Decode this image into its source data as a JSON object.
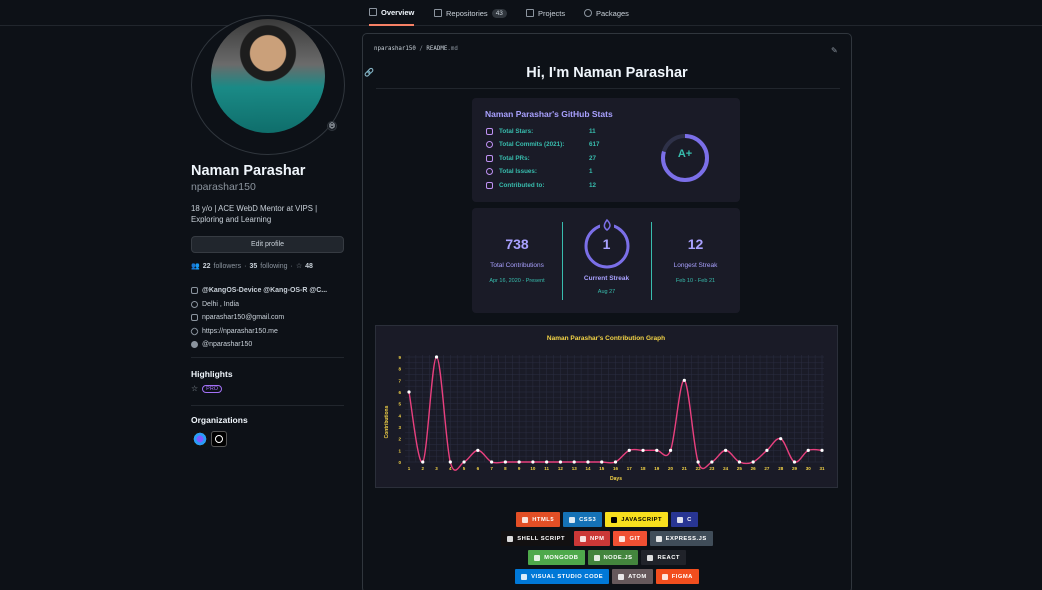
{
  "nav": {
    "tabs": [
      {
        "label": "Overview"
      },
      {
        "label": "Repositories",
        "count": "43"
      },
      {
        "label": "Projects"
      },
      {
        "label": "Packages"
      }
    ]
  },
  "profile": {
    "emoji": "😄",
    "name": "Naman Parashar",
    "login": "nparashar150",
    "bio": "18 y/o | ACE WebD Mentor at VIPS | Exploring and Learning",
    "edit_label": "Edit profile",
    "followers_count": "22",
    "followers_label": "followers",
    "following_count": "35",
    "following_label": "following",
    "stars_count": "48",
    "company": "@KangOS-Device @Kang-OS-R @C...",
    "location": "Delhi , India",
    "email": "nparashar150@gmail.com",
    "website": "https://nparashar150.me",
    "twitter": "@nparashar150"
  },
  "highlights": {
    "title": "Highlights",
    "badge": "PRO"
  },
  "organizations": {
    "title": "Organizations"
  },
  "readme": {
    "path_user": "nparashar150",
    "path_sep": "/",
    "path_file": "README",
    "path_ext": ".md",
    "heading": "Hi, I'm Naman Parashar"
  },
  "stats": {
    "title": "Naman Parashar's GitHub Stats",
    "rows": [
      {
        "label": "Total Stars:",
        "value": "11"
      },
      {
        "label": "Total Commits (2021):",
        "value": "617"
      },
      {
        "label": "Total PRs:",
        "value": "27"
      },
      {
        "label": "Total Issues:",
        "value": "1"
      },
      {
        "label": "Contributed to:",
        "value": "12"
      }
    ],
    "grade": "A+"
  },
  "streak": {
    "total": "738",
    "total_label": "Total Contributions",
    "total_range": "Apr 16, 2020 - Present",
    "current": "1",
    "current_label": "Current Streak",
    "current_range": "Aug 27",
    "longest": "12",
    "longest_label": "Longest Streak",
    "longest_range": "Feb 10 - Feb 21"
  },
  "chart_data": {
    "type": "line",
    "title": "Naman Parashar's Contribution Graph",
    "xlabel": "Days",
    "ylabel": "Contributions",
    "x": [
      1,
      2,
      3,
      4,
      5,
      6,
      7,
      8,
      9,
      10,
      11,
      12,
      13,
      14,
      15,
      16,
      17,
      18,
      19,
      20,
      21,
      22,
      23,
      24,
      25,
      26,
      27,
      28,
      29,
      30,
      31
    ],
    "values": [
      6,
      0,
      9,
      0,
      0,
      1,
      0,
      0,
      0,
      0,
      0,
      0,
      0,
      0,
      0,
      0,
      1,
      1,
      1,
      1,
      7,
      0,
      0,
      1,
      0,
      0,
      1,
      2,
      0,
      1,
      1
    ],
    "yticks": [
      0,
      1,
      2,
      3,
      4,
      5,
      6,
      7,
      8,
      9
    ],
    "ylim": [
      0,
      9
    ],
    "grid": true,
    "line_color": "#e8407e",
    "point_color": "#ffffff"
  },
  "badges": [
    [
      {
        "label": "HTML5",
        "color": "#e34f26"
      },
      {
        "label": "CSS3",
        "color": "#1572b6"
      },
      {
        "label": "JAVASCRIPT",
        "color": "#f7df1e",
        "text": "#000000"
      },
      {
        "label": "C",
        "color": "#283593"
      }
    ],
    [
      {
        "label": "SHELL SCRIPT",
        "color": "#121011"
      },
      {
        "label": "NPM",
        "color": "#cb3837"
      },
      {
        "label": "GIT",
        "color": "#f05033"
      },
      {
        "label": "EXPRESS.JS",
        "color": "#404d59"
      }
    ],
    [
      {
        "label": "MONGODB",
        "color": "#4ea94b"
      },
      {
        "label": "NODE.JS",
        "color": "#43853d"
      },
      {
        "label": "REACT",
        "color": "#20232a"
      }
    ],
    [
      {
        "label": "VISUAL STUDIO CODE",
        "color": "#0078d7"
      },
      {
        "label": "ATOM",
        "color": "#66595c"
      },
      {
        "label": "FIGMA",
        "color": "#f24e1e"
      }
    ]
  ]
}
